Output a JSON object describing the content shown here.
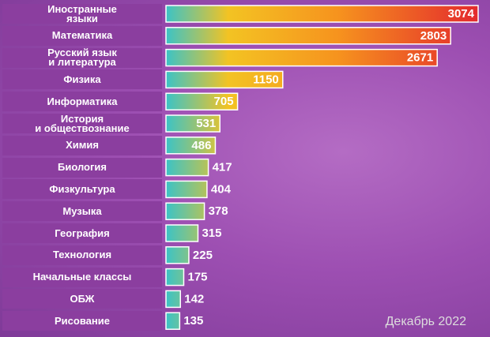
{
  "chart_data": {
    "type": "barh",
    "categories": [
      "Иностранные\nязыки",
      "Математика",
      "Русский язык\nи литература",
      "Физика",
      "Информатика",
      "История\nи обществознание",
      "Химия",
      "Биология",
      "Физкультура",
      "Музыка",
      "География",
      "Технология",
      "Начальные классы",
      "ОБЖ",
      "Рисование"
    ],
    "values": [
      3074,
      2803,
      2671,
      1150,
      705,
      531,
      486,
      417,
      404,
      378,
      315,
      225,
      175,
      142,
      135
    ],
    "gradient": [
      "#3cc3c6",
      "#f3c323",
      "#f6931e",
      "#e42a2d"
    ],
    "annotation": "Декабрь 2022"
  }
}
